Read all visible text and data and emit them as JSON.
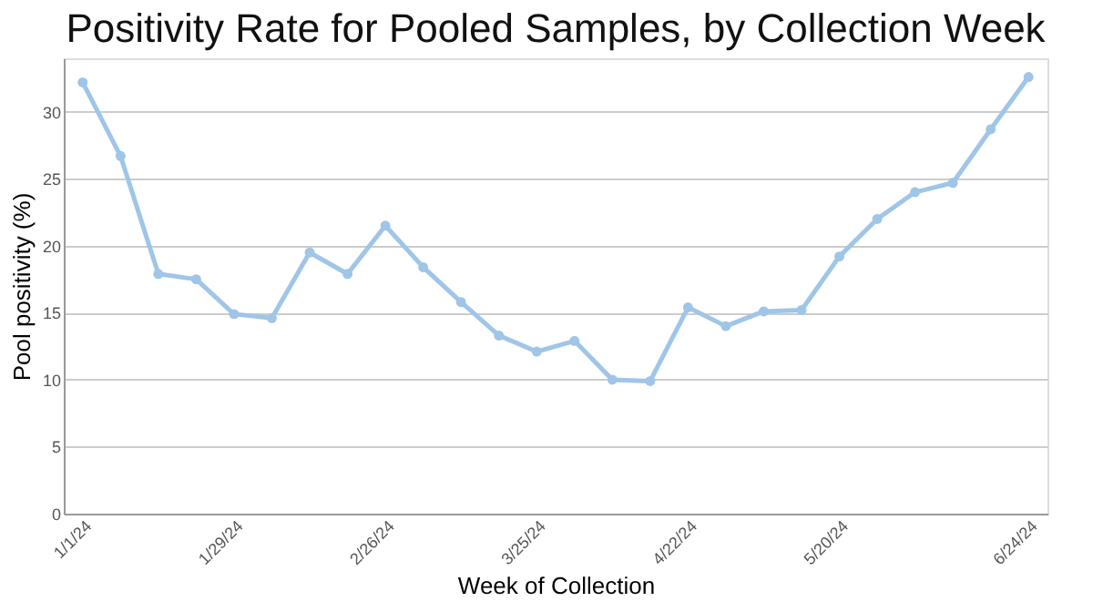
{
  "chart_data": {
    "type": "line",
    "title": "Positivity Rate for Pooled Samples, by Collection Week",
    "xlabel": "Week of Collection",
    "ylabel": "Pool positivity (%)",
    "categories": [
      "1/1/24",
      null,
      null,
      null,
      "1/29/24",
      null,
      null,
      null,
      "2/26/24",
      null,
      null,
      null,
      "3/25/24",
      null,
      null,
      null,
      "4/22/24",
      null,
      null,
      null,
      "5/20/24",
      null,
      null,
      null,
      null,
      "6/24/24"
    ],
    "series": [
      {
        "color": "#9fc5e8",
        "values": [
          32.2,
          26.7,
          17.9,
          17.5,
          14.9,
          14.6,
          19.5,
          17.9,
          21.5,
          18.4,
          15.8,
          13.3,
          12.1,
          12.9,
          10.0,
          9.9,
          15.4,
          14.0,
          15.1,
          15.2,
          19.2,
          22.0,
          24.0,
          24.7,
          28.7,
          32.6
        ]
      }
    ],
    "ylim": [
      0,
      34
    ],
    "yticks": [
      0,
      5,
      10,
      15,
      20,
      25,
      30
    ],
    "grid": "y",
    "marker": "circle",
    "line_style": "solid"
  }
}
